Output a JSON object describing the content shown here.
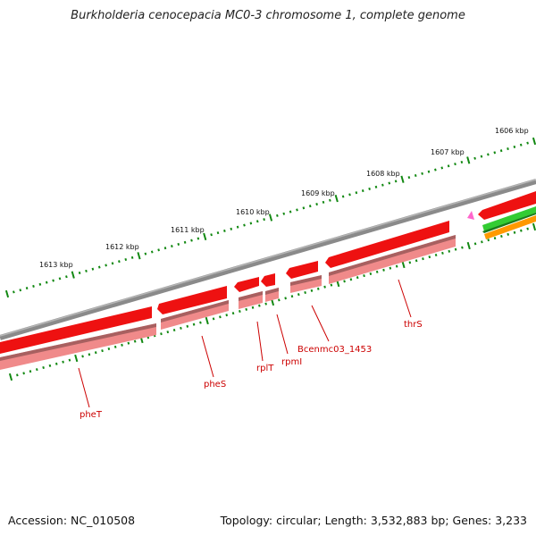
{
  "title": "Burkholderia cenocepacia MC0-3 chromosome 1, complete genome",
  "accession": "Accession: NC_010508",
  "topology": "Topology: circular; Length: 3,532,883 bp; Genes: 3,233",
  "scale_labels": [
    "1613 kbp",
    "1612 kbp",
    "1611 kbp",
    "1610 kbp",
    "1609 kbp",
    "1608 kbp",
    "1607 kbp",
    "1606 kbp"
  ],
  "genes": [
    {
      "label": "pheT"
    },
    {
      "label": "pheS"
    },
    {
      "label": "rplT"
    },
    {
      "label": "rpmI"
    },
    {
      "label": "Bcenmc03_1453"
    },
    {
      "label": "thrS"
    }
  ],
  "colors": {
    "cds_forward": "#ee1111",
    "cds_shadow": "#f08a8a",
    "backbone": "#8a8a8a",
    "tick": "#118811",
    "label": "#cc0000",
    "green_feature": "#33cc33",
    "orange_feature": "#ff9900",
    "pink_marker": "#ff66cc"
  }
}
